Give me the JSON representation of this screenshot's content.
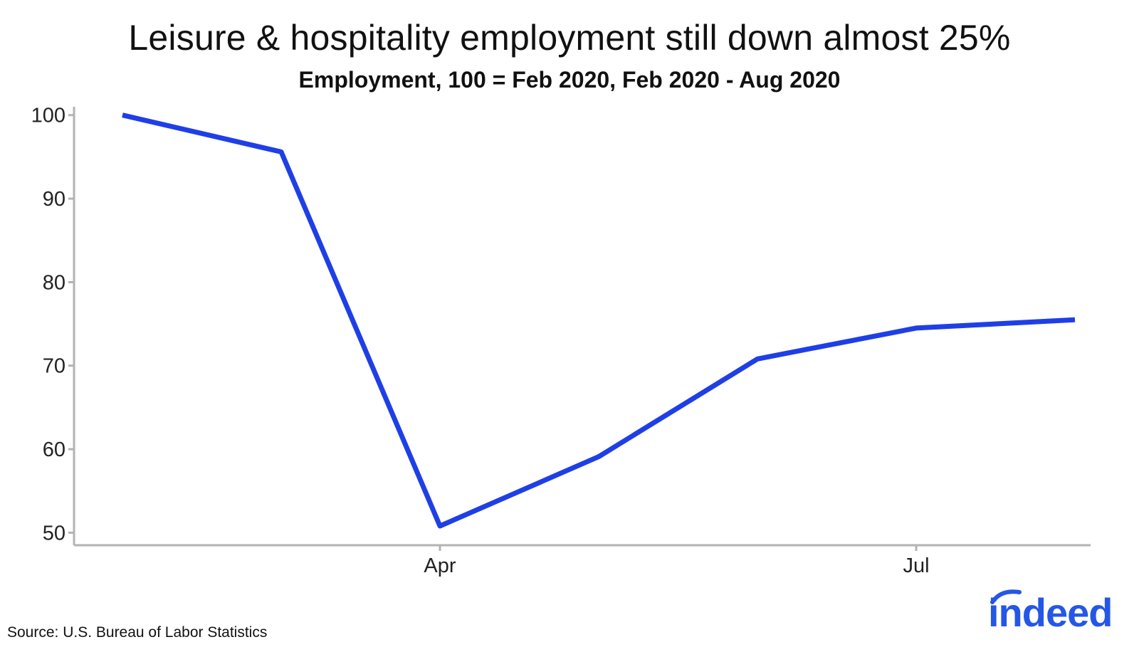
{
  "chart_data": {
    "type": "line",
    "title": "Leisure & hospitality employment still down almost 25%",
    "subtitle": "Employment, 100 = Feb 2020, Feb 2020 - Aug 2020",
    "xlabel": "",
    "ylabel": "",
    "x": [
      "2020-02",
      "2020-03",
      "2020-04",
      "2020-05",
      "2020-06",
      "2020-07",
      "2020-08"
    ],
    "series": [
      {
        "values": [
          100,
          95.6,
          50.8,
          59.1,
          70.8,
          74.5,
          75.5
        ],
        "color": "#1f3fe6"
      }
    ],
    "ylim": [
      48.5,
      101
    ],
    "yticks": [
      100,
      90,
      80,
      70,
      60,
      50
    ],
    "xticks": [
      {
        "x": "2020-04",
        "label": "Apr"
      },
      {
        "x": "2020-07",
        "label": "Jul"
      }
    ],
    "grid": false,
    "legend": "none",
    "axis_color": "#b3b3b3"
  },
  "footer": {
    "source": "Source: U.S. Bureau of Labor Statistics",
    "logo_text": "indeed",
    "logo_color": "#2557e6"
  }
}
